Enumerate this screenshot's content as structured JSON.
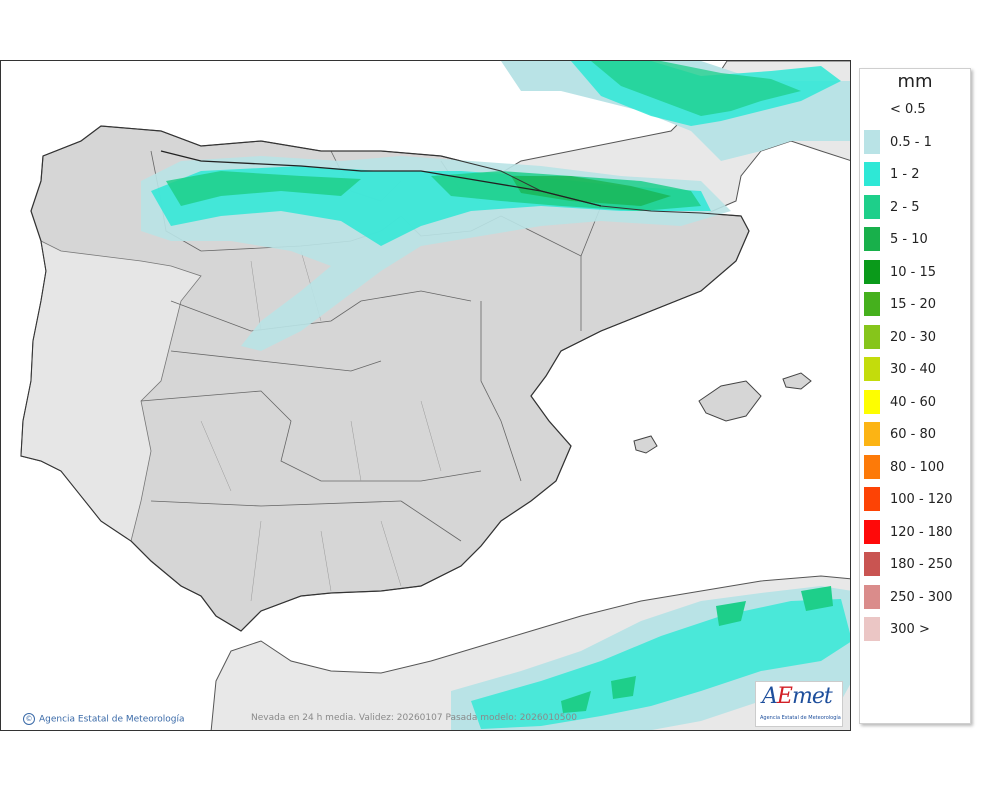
{
  "legend": {
    "unit": "mm",
    "classes": [
      {
        "label": "< 0.5",
        "color": "#ffffff"
      },
      {
        "label": "0.5 - 1",
        "color": "#b9e3e6"
      },
      {
        "label": "1 - 2",
        "color": "#2ee8d6"
      },
      {
        "label": "2 - 5",
        "color": "#1ecf8a"
      },
      {
        "label": "5 - 10",
        "color": "#18b04b"
      },
      {
        "label": "10 - 15",
        "color": "#0a9a1a"
      },
      {
        "label": "15 - 20",
        "color": "#45b01d"
      },
      {
        "label": "20 - 30",
        "color": "#86c51b"
      },
      {
        "label": "30 - 40",
        "color": "#c3dc0c"
      },
      {
        "label": "40 - 60",
        "color": "#fefe00"
      },
      {
        "label": "60 - 80",
        "color": "#fcb414"
      },
      {
        "label": "80 - 100",
        "color": "#fd7a08"
      },
      {
        "label": "100 - 120",
        "color": "#fd4305"
      },
      {
        "label": "120 - 180",
        "color": "#ff0909"
      },
      {
        "label": "180 - 250",
        "color": "#c95451"
      },
      {
        "label": "250 - 300",
        "color": "#da8c8b"
      },
      {
        "label": "300 >",
        "color": "#ebc6c5"
      }
    ]
  },
  "footer": {
    "credit": "Agencia Estatal de Meteorología",
    "credit_icon": "©",
    "validity": "Nevada en 24 h media. Validez: 20260107 Pasada modelo: 2026010500"
  },
  "logo": {
    "wordmark_a": "A",
    "wordmark_e": "E",
    "wordmark_rest": "met",
    "subtitle": "Agencia Estatal de Meteorología"
  }
}
